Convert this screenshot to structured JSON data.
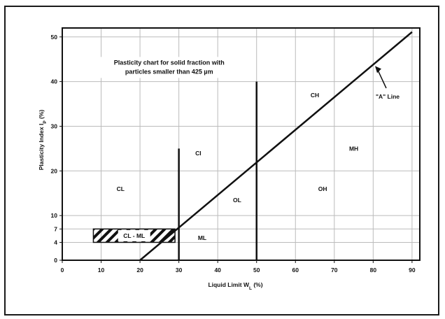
{
  "chart_data": {
    "type": "line",
    "title": [
      "Plasticity chart for solid fraction with",
      "particles smaller than 425 µm"
    ],
    "xlabel": "Liquid Limit W",
    "xlabel_sub": "L",
    "xlabel_unit": " (%)",
    "ylabel": "Plasticity Index I",
    "ylabel_sub": "P",
    "ylabel_unit": " (%)",
    "xlim": [
      0,
      92
    ],
    "ylim": [
      0,
      52
    ],
    "x_ticks": [
      0,
      10,
      20,
      30,
      40,
      50,
      60,
      70,
      80,
      90
    ],
    "y_ticks": [
      0,
      4,
      7,
      10,
      20,
      30,
      40,
      50
    ],
    "grid": true,
    "a_line": {
      "name": "\"A\" Line",
      "x": [
        20,
        90
      ],
      "y": [
        0,
        51.1
      ]
    },
    "boundaries": [
      {
        "x": [
          30,
          30
        ],
        "y": [
          0,
          25
        ]
      },
      {
        "x": [
          50,
          50
        ],
        "y": [
          0,
          40
        ]
      }
    ],
    "cl_ml_zone": {
      "label": "CL - ML",
      "x": [
        8,
        29
      ],
      "y": [
        4,
        7
      ]
    },
    "zones": [
      {
        "label": "CL",
        "x": 15,
        "y": 16
      },
      {
        "label": "CI",
        "x": 35,
        "y": 24
      },
      {
        "label": "CH",
        "x": 65,
        "y": 37
      },
      {
        "label": "MH",
        "x": 75,
        "y": 25
      },
      {
        "label": "OH",
        "x": 67,
        "y": 16
      },
      {
        "label": "OL",
        "x": 45,
        "y": 13.5
      },
      {
        "label": "ML",
        "x": 36,
        "y": 5
      }
    ]
  }
}
